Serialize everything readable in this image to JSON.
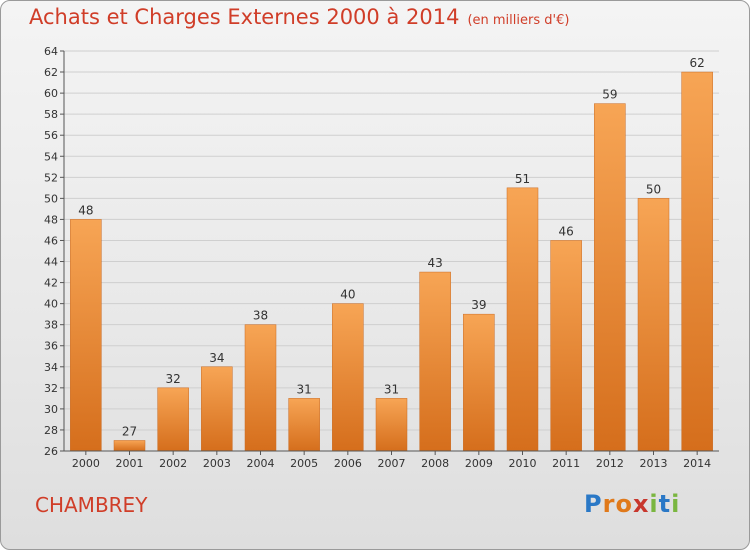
{
  "header": {
    "title": "Achats et Charges Externes 2000 à 2014",
    "subtitle": "(en milliers d'€)"
  },
  "commune": "CHAMBREY",
  "logo": {
    "text": "Proxiti",
    "letter_colors": [
      "#2a78c6",
      "#e0791a",
      "#e0791a",
      "#c8372d",
      "#7ab640",
      "#2a78c6",
      "#7ab640"
    ]
  },
  "colors": {
    "title": "#d03d28",
    "bar_top": "#f7a555",
    "bar_bottom": "#d56e1c",
    "grid": "#cfcfcf"
  },
  "chart_data": {
    "type": "bar",
    "title": "Achats et Charges Externes 2000 à 2014",
    "subtitle": "(en milliers d'€)",
    "categories": [
      "2000",
      "2001",
      "2002",
      "2003",
      "2004",
      "2005",
      "2006",
      "2007",
      "2008",
      "2009",
      "2010",
      "2011",
      "2012",
      "2013",
      "2014"
    ],
    "values": [
      48,
      27,
      32,
      34,
      38,
      31,
      40,
      31,
      43,
      39,
      51,
      46,
      59,
      50,
      62
    ],
    "ylim": [
      26,
      64
    ],
    "yticks": [
      26,
      28,
      30,
      32,
      34,
      36,
      38,
      40,
      42,
      44,
      46,
      48,
      50,
      52,
      54,
      56,
      58,
      60,
      62,
      64
    ],
    "grid": true,
    "legend": "none",
    "xlabel": "",
    "ylabel": ""
  }
}
